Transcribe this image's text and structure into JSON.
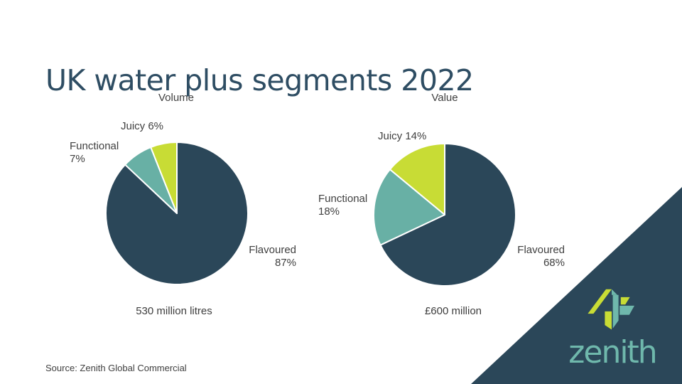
{
  "slide": {
    "title": "UK water plus segments 2022",
    "source": "Source: Zenith Global Commercial"
  },
  "branding": {
    "wordmark": "zenith",
    "corner_color": "#2B4759",
    "logo_teal": "#6FB8AC",
    "logo_lime": "#C8DC35"
  },
  "colors": {
    "flavoured_navy": "#2B4759",
    "functional_teal": "#68B0A5",
    "juicy_lime": "#C8DC35",
    "title_text": "#2E4D63",
    "label_text": "#404040"
  },
  "chart_data": [
    {
      "type": "pie",
      "title": "Volume",
      "caption": "530 million litres",
      "categories": [
        "Flavoured",
        "Functional",
        "Juicy"
      ],
      "values": [
        87,
        7,
        6
      ],
      "colors": [
        "#2B4759",
        "#68B0A5",
        "#C8DC35"
      ],
      "start_angle": "12 o'clock",
      "direction": "clockwise",
      "labels": {
        "flavoured": [
          "Flavoured",
          "87%"
        ],
        "functional": [
          "Functional",
          "7%"
        ],
        "juicy": "Juicy 6%"
      }
    },
    {
      "type": "pie",
      "title": "Value",
      "caption": "£600 million",
      "categories": [
        "Flavoured",
        "Functional",
        "Juicy"
      ],
      "values": [
        68,
        18,
        14
      ],
      "colors": [
        "#2B4759",
        "#68B0A5",
        "#C8DC35"
      ],
      "start_angle": "12 o'clock",
      "direction": "clockwise",
      "labels": {
        "flavoured": [
          "Flavoured",
          "68%"
        ],
        "functional": [
          "Functional",
          "18%"
        ],
        "juicy": "Juicy 14%"
      }
    }
  ]
}
